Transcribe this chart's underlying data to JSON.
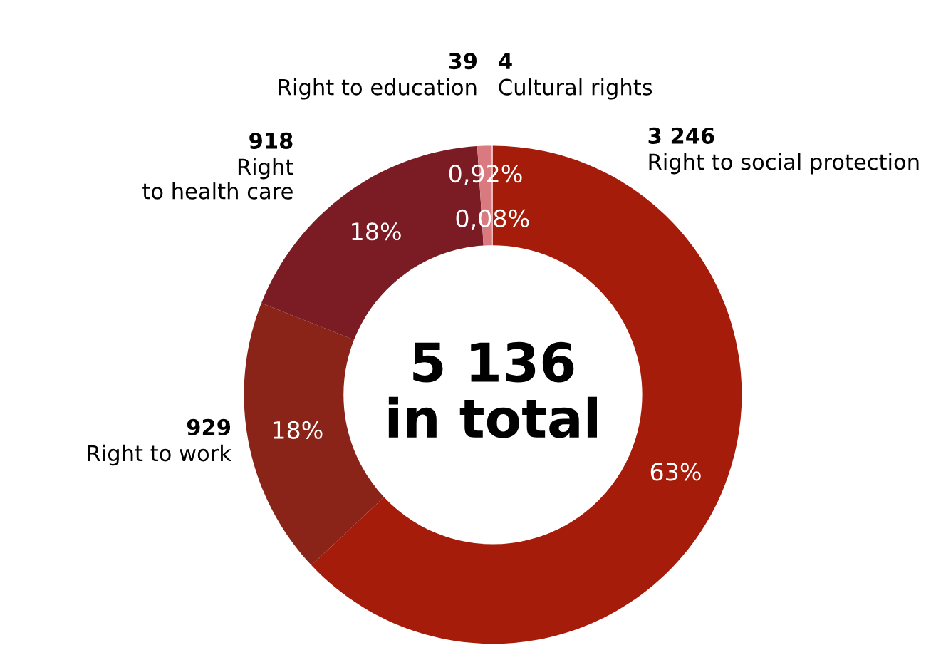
{
  "chart_data": {
    "type": "donut",
    "categories": [
      "Right to social protection",
      "Right to work",
      "Right\nto health care",
      "Right to education",
      "Cultural rights"
    ],
    "values": [
      63,
      18,
      18,
      0.92,
      0.08
    ],
    "colors": [
      "#a51c0b",
      "#8a2318",
      "#7b1c24",
      "#d87a80",
      "#f4b5b5"
    ],
    "value_labels": [
      "63%",
      "18%",
      "18%",
      "0,92%",
      "0,08%"
    ],
    "annotations": [
      "5 136\nin total",
      "3 246",
      "929",
      "918",
      "39",
      "4"
    ],
    "legend": false
  }
}
